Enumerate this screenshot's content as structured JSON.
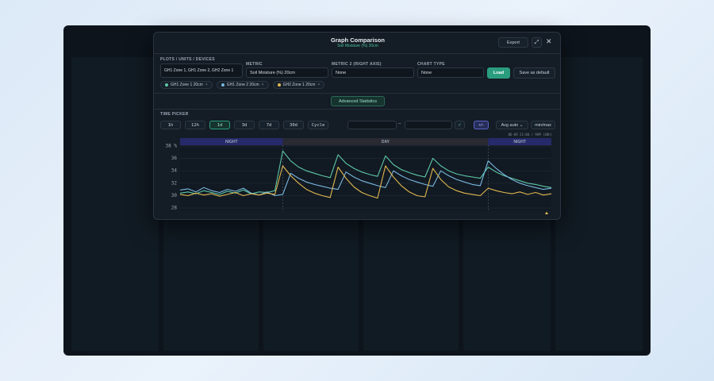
{
  "header": {
    "title": "Graph Comparison",
    "subtitle": "Soil Moisture (%) 20cm",
    "export": "Export"
  },
  "form": {
    "plots_label": "PLOTS / UNITS / DEVICES",
    "plots_value": "GH1 Zone 1, GH1 Zone 2, GH2 Zone 1",
    "metric_label": "METRIC",
    "metric_value": "Soil Moisture (%) 20cm",
    "metric2_label": "METRIC 2 (RIGHT AXIS)",
    "metric2_value": "None",
    "chart_type_label": "CHART TYPE",
    "chart_type_value": "None",
    "load": "Load",
    "save_default": "Save as default",
    "advanced": "Advanced Statistics"
  },
  "time_picker": {
    "label": "TIME PICKER",
    "ranges": [
      "1h",
      "12h",
      "1d",
      "3d",
      "7d",
      "30d",
      "Cycle"
    ],
    "active": 2,
    "separator": "–",
    "confirm": "✓",
    "toggle": "+/-",
    "aggregate": "Avg auto",
    "minmax": "min/max"
  },
  "chart_data": {
    "type": "line",
    "range_note": "06-09 21:00 / 9AM (40h)",
    "ylim": [
      27.5,
      38.5
    ],
    "yticks": [
      28,
      30,
      32,
      34,
      36,
      {
        "value": 38,
        "label": "38 %"
      }
    ],
    "bands": [
      {
        "label": "NIGHT",
        "from": 0,
        "to": 13
      },
      {
        "label": "DAY",
        "from": 13,
        "to": 39
      },
      {
        "label": "NIGHT",
        "from": 39,
        "to": 47
      }
    ],
    "series": [
      {
        "name": "GH1 Zone 1 20cm",
        "color": "#5ec8a8",
        "values": [
          30.4,
          30.6,
          30.3,
          30.8,
          30.5,
          30.2,
          30.7,
          30.4,
          30.9,
          30.3,
          30.6,
          30.5,
          30.8,
          37.2,
          35.6,
          34.6,
          34.0,
          33.6,
          33.2,
          32.9,
          36.6,
          35.2,
          34.4,
          33.8,
          33.4,
          33.1,
          36.4,
          35.0,
          34.2,
          33.7,
          33.3,
          33.0,
          36.0,
          34.8,
          34.0,
          33.5,
          33.2,
          33.0,
          32.8,
          34.6,
          33.8,
          33.2,
          32.8,
          32.4,
          32.0,
          31.8,
          31.5,
          31.3
        ]
      },
      {
        "name": "GH1 Zone 2 20cm",
        "color": "#7ab8e0",
        "values": [
          30.9,
          31.1,
          30.6,
          31.3,
          30.8,
          30.5,
          31.0,
          30.7,
          31.2,
          30.4,
          30.1,
          30.6,
          30.0,
          30.2,
          33.6,
          32.8,
          32.2,
          31.8,
          31.5,
          31.2,
          31.0,
          33.8,
          33.0,
          32.4,
          32.0,
          31.6,
          31.3,
          34.0,
          33.2,
          32.6,
          32.2,
          31.8,
          31.5,
          34.0,
          33.2,
          32.6,
          32.2,
          31.8,
          31.6,
          35.6,
          34.4,
          33.4,
          32.6,
          32.0,
          31.6,
          31.3,
          31.0,
          31.2
        ]
      },
      {
        "name": "GH2 Zone 1 20cm",
        "color": "#e0b850",
        "values": [
          30.2,
          30.0,
          30.4,
          30.1,
          30.3,
          29.9,
          30.2,
          30.5,
          30.0,
          30.3,
          30.1,
          30.4,
          30.2,
          34.8,
          33.2,
          32.0,
          31.0,
          30.4,
          30.0,
          29.7,
          34.6,
          32.8,
          31.4,
          30.5,
          30.0,
          29.6,
          34.8,
          33.0,
          31.6,
          30.6,
          30.0,
          29.8,
          34.4,
          32.6,
          31.4,
          30.8,
          30.4,
          30.2,
          30.0,
          31.2,
          30.8,
          30.5,
          30.3,
          30.6,
          30.2,
          30.5,
          30.1,
          30.3
        ]
      }
    ]
  }
}
